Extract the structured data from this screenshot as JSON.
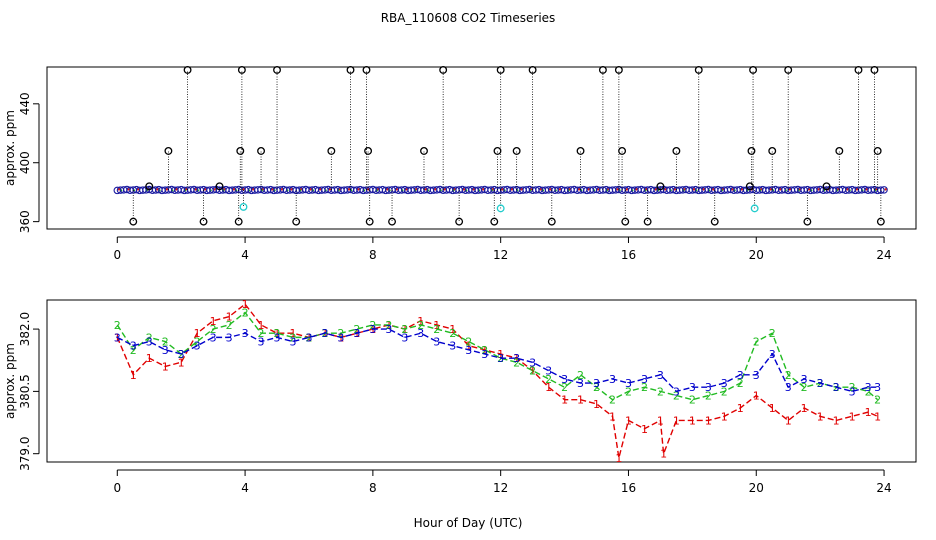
{
  "chart_data": [
    {
      "type": "scatter",
      "panel": "top",
      "title": "RBA_110608  CO2 Timeseries",
      "xlabel": "",
      "ylabel": "approx. ppm",
      "xlim": [
        -2.2,
        25.0
      ],
      "ylim": [
        355,
        465
      ],
      "xticks": [
        "0",
        "4",
        "8",
        "12",
        "16",
        "20",
        "24"
      ],
      "yticks": [
        "360",
        "400",
        "440"
      ],
      "baseline": 381.5,
      "black_circles": {
        "x": [
          0.5,
          1.0,
          1.6,
          2.2,
          2.7,
          3.2,
          3.8,
          3.85,
          3.9,
          4.5,
          5.0,
          5.6,
          6.7,
          7.3,
          7.8,
          7.85,
          7.9,
          8.6,
          9.6,
          10.2,
          10.7,
          11.8,
          11.9,
          12.0,
          12.5,
          13.0,
          13.6,
          14.5,
          15.2,
          15.7,
          15.8,
          15.9,
          16.6,
          17.0,
          17.5,
          18.2,
          18.7,
          19.8,
          19.85,
          19.9,
          20.5,
          21.0,
          21.6,
          22.2,
          22.6,
          23.2,
          23.7,
          23.8,
          23.9
        ],
        "y": [
          360,
          384,
          408,
          463,
          360,
          384,
          360,
          408,
          463,
          408,
          463,
          360,
          408,
          463,
          463,
          408,
          360,
          360,
          408,
          463,
          360,
          360,
          408,
          463,
          408,
          463,
          360,
          408,
          463,
          463,
          408,
          360,
          360,
          384,
          408,
          463,
          360,
          384,
          408,
          463,
          408,
          463,
          360,
          384,
          408,
          463,
          463,
          408,
          360
        ]
      },
      "cyan_circles": {
        "x": [
          3.95,
          12.0,
          19.95
        ],
        "y": [
          370,
          369,
          369
        ]
      }
    },
    {
      "type": "line",
      "panel": "bottom",
      "xlabel": "Hour of Day (UTC)",
      "ylabel": "approx. ppm",
      "xlim": [
        -2.2,
        25.0
      ],
      "ylim": [
        378.8,
        382.7
      ],
      "xticks": [
        "0",
        "4",
        "8",
        "12",
        "16",
        "20",
        "24"
      ],
      "yticks": [
        "379.0",
        "380.5",
        "382.0"
      ],
      "series": [
        {
          "name": "1",
          "marker": "1",
          "color": "#e00000",
          "x": [
            0,
            0.5,
            1,
            1.5,
            2,
            2.5,
            3,
            3.5,
            4,
            4.5,
            5,
            5.5,
            6,
            6.5,
            7,
            7.5,
            8,
            8.5,
            9,
            9.5,
            10,
            10.5,
            11,
            11.5,
            12,
            12.5,
            13,
            13.5,
            14,
            14.5,
            15,
            15.5,
            15.7,
            16,
            16.5,
            17,
            17.1,
            17.5,
            18,
            18.5,
            19,
            19.5,
            20,
            20.5,
            21,
            21.5,
            22,
            22.5,
            23,
            23.5,
            23.8
          ],
          "y": [
            381.8,
            380.9,
            381.3,
            381.1,
            381.2,
            381.9,
            382.2,
            382.3,
            382.6,
            382.1,
            381.9,
            381.9,
            381.8,
            381.9,
            381.8,
            381.9,
            382.0,
            382.1,
            382.0,
            382.2,
            382.1,
            382.0,
            381.6,
            381.5,
            381.4,
            381.3,
            381.0,
            380.6,
            380.3,
            380.3,
            380.2,
            379.9,
            378.9,
            379.8,
            379.6,
            379.8,
            379.0,
            379.8,
            379.8,
            379.8,
            379.9,
            380.1,
            380.4,
            380.1,
            379.8,
            380.1,
            379.9,
            379.8,
            379.9,
            380.0,
            379.9
          ]
        },
        {
          "name": "2",
          "marker": "2",
          "color": "#22bb22",
          "x": [
            0,
            0.5,
            1,
            1.5,
            2,
            2.5,
            3,
            3.5,
            4,
            4.5,
            5,
            5.5,
            6,
            6.5,
            7,
            7.5,
            8,
            8.5,
            9,
            9.5,
            10,
            10.5,
            11,
            11.5,
            12,
            12.5,
            13,
            13.5,
            14,
            14.5,
            15,
            15.5,
            16,
            16.5,
            17,
            17.5,
            18,
            18.5,
            19,
            19.5,
            20,
            20.5,
            21,
            21.5,
            22,
            22.5,
            23,
            23.5,
            23.8
          ],
          "y": [
            382.1,
            381.5,
            381.8,
            381.7,
            381.4,
            381.7,
            382.0,
            382.1,
            382.4,
            381.9,
            381.9,
            381.8,
            381.8,
            381.9,
            381.9,
            382.0,
            382.1,
            382.1,
            382.0,
            382.1,
            382.0,
            381.9,
            381.7,
            381.5,
            381.3,
            381.2,
            381.0,
            380.8,
            380.6,
            380.9,
            380.6,
            380.3,
            380.5,
            380.6,
            380.5,
            380.4,
            380.3,
            380.4,
            380.5,
            380.7,
            381.7,
            381.9,
            380.9,
            380.6,
            380.7,
            380.6,
            380.6,
            380.5,
            380.3
          ]
        },
        {
          "name": "3",
          "marker": "3",
          "color": "#0000cc",
          "x": [
            0,
            0.5,
            1,
            1.5,
            2,
            2.5,
            3,
            3.5,
            4,
            4.5,
            5,
            5.5,
            6,
            6.5,
            7,
            7.5,
            8,
            8.5,
            9,
            9.5,
            10,
            10.5,
            11,
            11.5,
            12,
            12.5,
            13,
            13.5,
            14,
            14.5,
            15,
            15.5,
            16,
            16.5,
            17,
            17.5,
            18,
            18.5,
            19,
            19.5,
            20,
            20.5,
            21,
            21.5,
            22,
            22.5,
            23,
            23.5,
            23.8
          ],
          "y": [
            381.8,
            381.6,
            381.7,
            381.5,
            381.4,
            381.6,
            381.8,
            381.8,
            381.9,
            381.7,
            381.8,
            381.7,
            381.8,
            381.9,
            381.8,
            381.9,
            382.0,
            382.0,
            381.8,
            381.9,
            381.7,
            381.6,
            381.5,
            381.4,
            381.3,
            381.3,
            381.2,
            381.0,
            380.8,
            380.7,
            380.7,
            380.8,
            380.7,
            380.8,
            380.9,
            380.5,
            380.6,
            380.6,
            380.7,
            380.9,
            380.9,
            381.4,
            380.6,
            380.8,
            380.7,
            380.6,
            380.5,
            380.6,
            380.6
          ]
        }
      ]
    }
  ]
}
